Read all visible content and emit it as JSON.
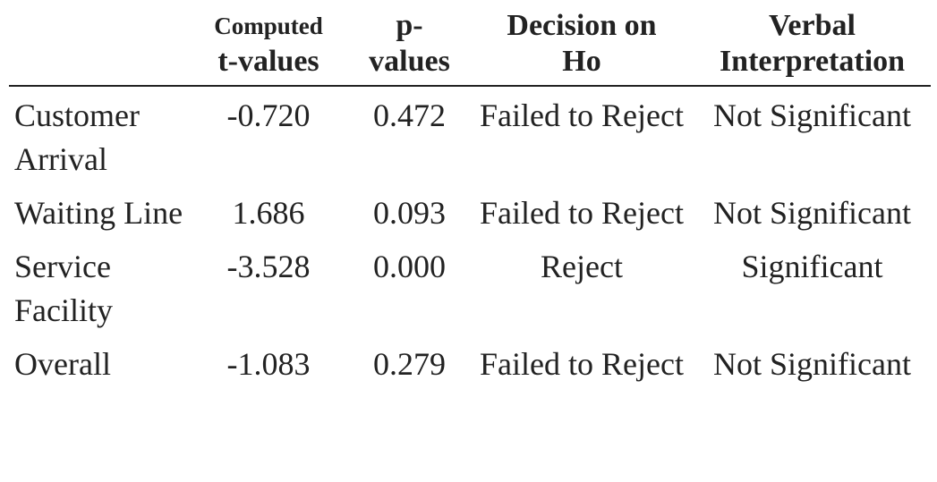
{
  "table": {
    "header": [
      [],
      [
        "Computed",
        "t-values"
      ],
      [
        "p-",
        "values"
      ],
      [
        "Decision on",
        "Ho"
      ],
      [
        "Verbal",
        "Interpretation"
      ]
    ],
    "rows": [
      [
        "Customer Arrival",
        "-0.720",
        "0.472",
        "Failed to Reject",
        "Not Significant"
      ],
      [
        "Waiting Line",
        "1.686",
        "0.093",
        "Failed to Reject",
        "Not Significant"
      ],
      [
        "Service Facility",
        "-3.528",
        "0.000",
        "Reject",
        "Significant"
      ],
      [
        "Overall",
        "-1.083",
        "0.279",
        "Failed to Reject",
        "Not Significant"
      ]
    ]
  }
}
